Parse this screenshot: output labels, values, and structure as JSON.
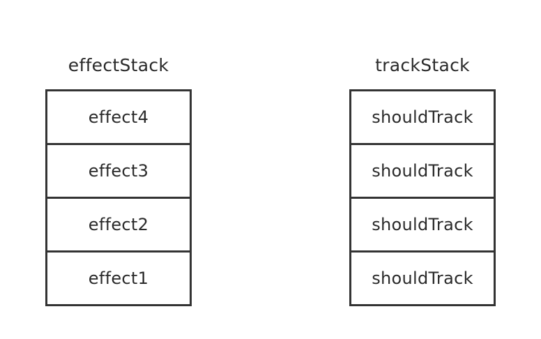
{
  "colors": {
    "background": "#ffffff",
    "stroke": "#333333",
    "text": "#2a2a2a"
  },
  "effect_stack": {
    "title": "effectStack",
    "items": [
      "effect4",
      "effect3",
      "effect2",
      "effect1"
    ]
  },
  "track_stack": {
    "title": "trackStack",
    "items": [
      "shouldTrack",
      "shouldTrack",
      "shouldTrack",
      "shouldTrack"
    ]
  }
}
